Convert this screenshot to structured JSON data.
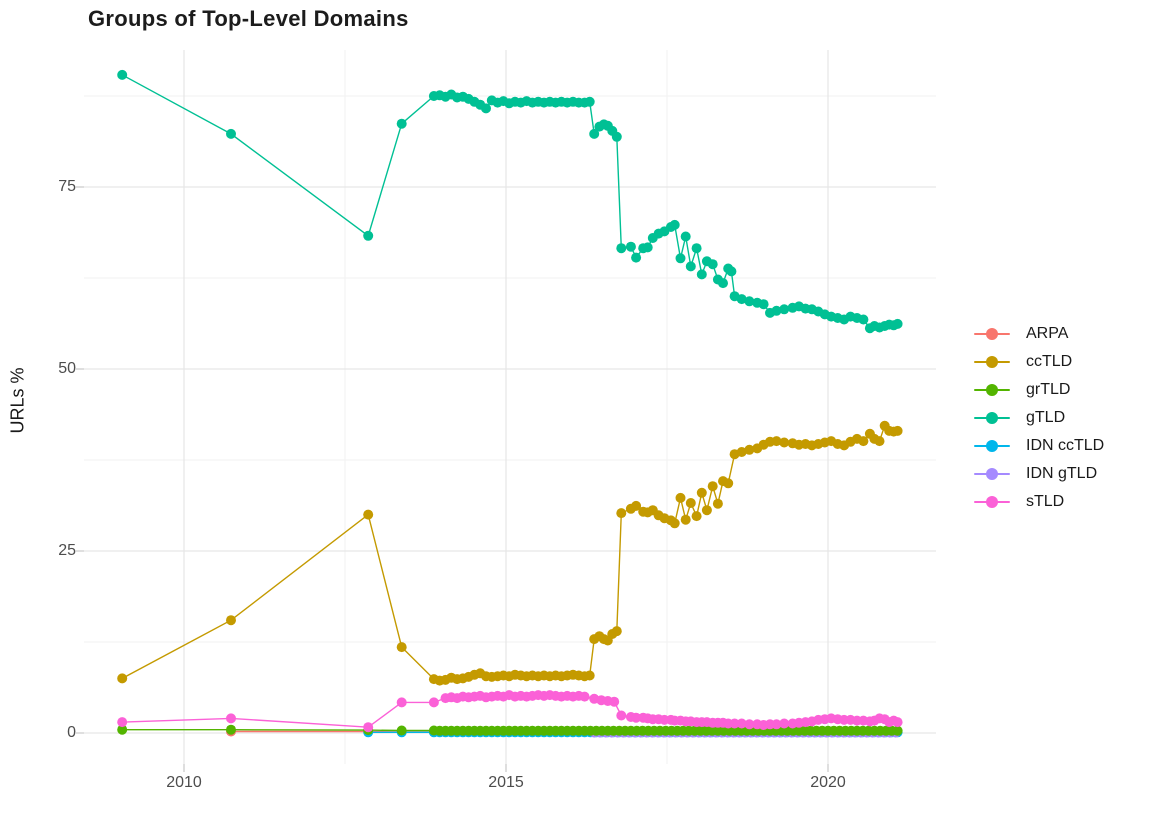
{
  "title": "Groups of Top-Level Domains",
  "y_axis_title": "URLs %",
  "legend": {
    "position": "right",
    "items": [
      {
        "label": "ARPA",
        "color": "#F8766D"
      },
      {
        "label": "ccTLD",
        "color": "#C49A00"
      },
      {
        "label": "grTLD",
        "color": "#53B400"
      },
      {
        "label": "gTLD",
        "color": "#00C094"
      },
      {
        "label": "IDN ccTLD",
        "color": "#00B6EB"
      },
      {
        "label": "IDN gTLD",
        "color": "#A58AFF"
      },
      {
        "label": "sTLD",
        "color": "#FB61D7"
      }
    ]
  },
  "chart_data": {
    "type": "line",
    "title": "Groups of Top-Level Domains",
    "xlabel": "",
    "ylabel": "URLs %",
    "xlim": [
      2008.45,
      2021.7
    ],
    "ylim": [
      -4.3,
      93.8
    ],
    "grid": "major+minor",
    "legend_position": "right",
    "x_axis": {
      "ticks": [
        {
          "label": "2010",
          "year": 2010
        },
        {
          "label": "2015",
          "year": 2015
        },
        {
          "label": "2020",
          "year": 2020
        }
      ],
      "minor": [
        2012.5,
        2017.5
      ]
    },
    "y_axis": {
      "ticks": [
        {
          "label": "0",
          "value": 0
        },
        {
          "label": "25",
          "value": 25
        },
        {
          "label": "50",
          "value": 50
        },
        {
          "label": "75",
          "value": 75
        }
      ],
      "minor": [
        12.5,
        37.5,
        62.5,
        87.5
      ]
    },
    "series": [
      {
        "name": "ARPA",
        "color": "#F8766D",
        "points": [
          [
            2010.73,
            0.2
          ],
          [
            2012.86,
            0.2
          ],
          [
            2013.38,
            0.15
          ],
          [
            2013.88,
            0.15
          ]
        ]
      },
      {
        "name": "IDN ccTLD",
        "color": "#00B6EB",
        "points": [
          [
            2012.86,
            0.1
          ],
          [
            2013.38,
            0.1
          ],
          [
            2013.88,
            0.1
          ]
        ],
        "flat_tail": {
          "from": 2013.97,
          "to": 2021.08,
          "step": 0.09,
          "value": 0.1
        }
      },
      {
        "name": "IDN gTLD",
        "color": "#A58AFF",
        "points": [],
        "flat_tail": {
          "from": 2016.37,
          "to": 2021.08,
          "step": 0.09,
          "value": 0.05
        }
      },
      {
        "name": "grTLD",
        "color": "#53B400",
        "points": [
          [
            2009.04,
            0.45
          ],
          [
            2010.73,
            0.45
          ],
          [
            2012.86,
            0.4
          ],
          [
            2013.38,
            0.35
          ],
          [
            2013.88,
            0.35
          ]
        ],
        "flat_tail": {
          "from": 2013.97,
          "to": 2021.08,
          "step": 0.09,
          "value": 0.3
        }
      },
      {
        "name": "sTLD",
        "color": "#FB61D7",
        "points": [
          [
            2009.04,
            1.5
          ],
          [
            2010.73,
            2.0
          ],
          [
            2012.86,
            0.8
          ],
          [
            2013.38,
            4.2
          ],
          [
            2013.88,
            4.2
          ],
          [
            2014.06,
            4.8
          ],
          [
            2014.15,
            4.9
          ],
          [
            2014.24,
            4.8
          ],
          [
            2014.33,
            5.0
          ],
          [
            2014.42,
            4.9
          ],
          [
            2014.51,
            5.0
          ],
          [
            2014.6,
            5.1
          ],
          [
            2014.69,
            4.9
          ],
          [
            2014.78,
            5.0
          ],
          [
            2014.87,
            5.1
          ],
          [
            2014.96,
            5.0
          ],
          [
            2015.05,
            5.2
          ],
          [
            2015.14,
            5.0
          ],
          [
            2015.23,
            5.1
          ],
          [
            2015.32,
            5.0
          ],
          [
            2015.41,
            5.1
          ],
          [
            2015.5,
            5.2
          ],
          [
            2015.59,
            5.1
          ],
          [
            2015.68,
            5.2
          ],
          [
            2015.77,
            5.1
          ],
          [
            2015.86,
            5.0
          ],
          [
            2015.95,
            5.1
          ],
          [
            2016.04,
            5.0
          ],
          [
            2016.13,
            5.1
          ],
          [
            2016.22,
            5.0
          ],
          [
            2016.37,
            4.7
          ],
          [
            2016.48,
            4.5
          ],
          [
            2016.58,
            4.4
          ],
          [
            2016.68,
            4.3
          ],
          [
            2016.79,
            2.4
          ],
          [
            2016.94,
            2.2
          ],
          [
            2017.02,
            2.1
          ],
          [
            2017.13,
            2.1
          ],
          [
            2017.2,
            2.0
          ],
          [
            2017.28,
            1.9
          ],
          [
            2017.37,
            1.9
          ],
          [
            2017.46,
            1.8
          ],
          [
            2017.56,
            1.8
          ],
          [
            2017.62,
            1.7
          ],
          [
            2017.71,
            1.7
          ],
          [
            2017.79,
            1.6
          ],
          [
            2017.87,
            1.6
          ],
          [
            2017.96,
            1.5
          ],
          [
            2018.04,
            1.5
          ],
          [
            2018.12,
            1.5
          ],
          [
            2018.21,
            1.4
          ],
          [
            2018.29,
            1.4
          ],
          [
            2018.37,
            1.4
          ],
          [
            2018.45,
            1.3
          ],
          [
            2018.55,
            1.3
          ],
          [
            2018.66,
            1.3
          ],
          [
            2018.78,
            1.2
          ],
          [
            2018.9,
            1.2
          ],
          [
            2019.0,
            1.1
          ],
          [
            2019.1,
            1.2
          ],
          [
            2019.2,
            1.2
          ],
          [
            2019.32,
            1.3
          ],
          [
            2019.45,
            1.3
          ],
          [
            2019.55,
            1.4
          ],
          [
            2019.65,
            1.5
          ],
          [
            2019.75,
            1.6
          ],
          [
            2019.85,
            1.8
          ],
          [
            2019.95,
            1.9
          ],
          [
            2020.05,
            2.0
          ],
          [
            2020.15,
            1.9
          ],
          [
            2020.25,
            1.8
          ],
          [
            2020.35,
            1.8
          ],
          [
            2020.45,
            1.7
          ],
          [
            2020.55,
            1.7
          ],
          [
            2020.65,
            1.6
          ],
          [
            2020.72,
            1.7
          ],
          [
            2020.8,
            2.0
          ],
          [
            2020.88,
            1.9
          ],
          [
            2020.95,
            1.5
          ],
          [
            2021.02,
            1.7
          ],
          [
            2021.08,
            1.5
          ]
        ]
      },
      {
        "name": "ccTLD",
        "color": "#C49A00",
        "points": [
          [
            2009.04,
            7.5
          ],
          [
            2010.73,
            15.5
          ],
          [
            2012.86,
            30.0
          ],
          [
            2013.38,
            11.8
          ],
          [
            2013.88,
            7.4
          ],
          [
            2013.97,
            7.2
          ],
          [
            2014.06,
            7.3
          ],
          [
            2014.15,
            7.6
          ],
          [
            2014.24,
            7.4
          ],
          [
            2014.33,
            7.5
          ],
          [
            2014.42,
            7.7
          ],
          [
            2014.51,
            8.0
          ],
          [
            2014.6,
            8.2
          ],
          [
            2014.69,
            7.8
          ],
          [
            2014.78,
            7.7
          ],
          [
            2014.87,
            7.8
          ],
          [
            2014.96,
            7.9
          ],
          [
            2015.05,
            7.8
          ],
          [
            2015.14,
            8.0
          ],
          [
            2015.23,
            7.9
          ],
          [
            2015.32,
            7.8
          ],
          [
            2015.41,
            7.9
          ],
          [
            2015.5,
            7.8
          ],
          [
            2015.59,
            7.9
          ],
          [
            2015.68,
            7.8
          ],
          [
            2015.77,
            7.9
          ],
          [
            2015.86,
            7.8
          ],
          [
            2015.95,
            7.9
          ],
          [
            2016.04,
            8.0
          ],
          [
            2016.13,
            7.9
          ],
          [
            2016.22,
            7.8
          ],
          [
            2016.3,
            7.9
          ],
          [
            2016.37,
            12.9
          ],
          [
            2016.45,
            13.3
          ],
          [
            2016.52,
            12.9
          ],
          [
            2016.58,
            12.7
          ],
          [
            2016.65,
            13.6
          ],
          [
            2016.72,
            14.0
          ],
          [
            2016.79,
            30.2
          ],
          [
            2016.94,
            30.8
          ],
          [
            2017.02,
            31.2
          ],
          [
            2017.13,
            30.4
          ],
          [
            2017.2,
            30.3
          ],
          [
            2017.28,
            30.6
          ],
          [
            2017.37,
            29.9
          ],
          [
            2017.46,
            29.5
          ],
          [
            2017.56,
            29.2
          ],
          [
            2017.62,
            28.8
          ],
          [
            2017.71,
            32.3
          ],
          [
            2017.79,
            29.3
          ],
          [
            2017.87,
            31.6
          ],
          [
            2017.96,
            29.8
          ],
          [
            2018.04,
            33.0
          ],
          [
            2018.12,
            30.6
          ],
          [
            2018.21,
            33.9
          ],
          [
            2018.29,
            31.5
          ],
          [
            2018.37,
            34.6
          ],
          [
            2018.45,
            34.3
          ],
          [
            2018.55,
            38.3
          ],
          [
            2018.66,
            38.6
          ],
          [
            2018.78,
            38.9
          ],
          [
            2018.9,
            39.1
          ],
          [
            2019.0,
            39.6
          ],
          [
            2019.1,
            40.0
          ],
          [
            2019.2,
            40.1
          ],
          [
            2019.32,
            39.9
          ],
          [
            2019.45,
            39.8
          ],
          [
            2019.55,
            39.6
          ],
          [
            2019.65,
            39.7
          ],
          [
            2019.75,
            39.5
          ],
          [
            2019.85,
            39.7
          ],
          [
            2019.95,
            39.9
          ],
          [
            2020.05,
            40.1
          ],
          [
            2020.15,
            39.7
          ],
          [
            2020.25,
            39.5
          ],
          [
            2020.35,
            40.0
          ],
          [
            2020.45,
            40.4
          ],
          [
            2020.55,
            40.1
          ],
          [
            2020.65,
            41.1
          ],
          [
            2020.72,
            40.4
          ],
          [
            2020.8,
            40.1
          ],
          [
            2020.88,
            42.2
          ],
          [
            2020.95,
            41.5
          ],
          [
            2021.02,
            41.4
          ],
          [
            2021.08,
            41.5
          ]
        ]
      },
      {
        "name": "gTLD",
        "color": "#00C094",
        "points": [
          [
            2009.04,
            90.4
          ],
          [
            2010.73,
            82.3
          ],
          [
            2012.86,
            68.3
          ],
          [
            2013.38,
            83.7
          ],
          [
            2013.88,
            87.5
          ],
          [
            2013.97,
            87.6
          ],
          [
            2014.06,
            87.4
          ],
          [
            2014.15,
            87.7
          ],
          [
            2014.24,
            87.3
          ],
          [
            2014.33,
            87.4
          ],
          [
            2014.42,
            87.1
          ],
          [
            2014.51,
            86.7
          ],
          [
            2014.6,
            86.3
          ],
          [
            2014.69,
            85.8
          ],
          [
            2014.78,
            86.9
          ],
          [
            2014.87,
            86.6
          ],
          [
            2014.96,
            86.8
          ],
          [
            2015.05,
            86.5
          ],
          [
            2015.14,
            86.7
          ],
          [
            2015.23,
            86.6
          ],
          [
            2015.32,
            86.8
          ],
          [
            2015.41,
            86.6
          ],
          [
            2015.5,
            86.7
          ],
          [
            2015.59,
            86.6
          ],
          [
            2015.68,
            86.7
          ],
          [
            2015.77,
            86.6
          ],
          [
            2015.86,
            86.7
          ],
          [
            2015.95,
            86.6
          ],
          [
            2016.04,
            86.7
          ],
          [
            2016.13,
            86.6
          ],
          [
            2016.22,
            86.6
          ],
          [
            2016.3,
            86.7
          ],
          [
            2016.37,
            82.3
          ],
          [
            2016.45,
            83.3
          ],
          [
            2016.52,
            83.6
          ],
          [
            2016.58,
            83.4
          ],
          [
            2016.65,
            82.7
          ],
          [
            2016.72,
            81.9
          ],
          [
            2016.79,
            66.6
          ],
          [
            2016.94,
            66.8
          ],
          [
            2017.02,
            65.3
          ],
          [
            2017.13,
            66.6
          ],
          [
            2017.2,
            66.7
          ],
          [
            2017.28,
            68.0
          ],
          [
            2017.37,
            68.6
          ],
          [
            2017.46,
            68.9
          ],
          [
            2017.56,
            69.5
          ],
          [
            2017.62,
            69.8
          ],
          [
            2017.71,
            65.2
          ],
          [
            2017.79,
            68.2
          ],
          [
            2017.87,
            64.1
          ],
          [
            2017.96,
            66.6
          ],
          [
            2018.04,
            63.0
          ],
          [
            2018.12,
            64.8
          ],
          [
            2018.21,
            64.4
          ],
          [
            2018.29,
            62.3
          ],
          [
            2018.37,
            61.8
          ],
          [
            2018.45,
            63.8
          ],
          [
            2018.5,
            63.4
          ],
          [
            2018.55,
            60.0
          ],
          [
            2018.66,
            59.6
          ],
          [
            2018.78,
            59.3
          ],
          [
            2018.9,
            59.1
          ],
          [
            2019.0,
            58.9
          ],
          [
            2019.1,
            57.7
          ],
          [
            2019.2,
            58.0
          ],
          [
            2019.32,
            58.2
          ],
          [
            2019.45,
            58.4
          ],
          [
            2019.55,
            58.6
          ],
          [
            2019.65,
            58.3
          ],
          [
            2019.75,
            58.2
          ],
          [
            2019.85,
            57.9
          ],
          [
            2019.95,
            57.5
          ],
          [
            2020.05,
            57.2
          ],
          [
            2020.15,
            57.0
          ],
          [
            2020.25,
            56.8
          ],
          [
            2020.35,
            57.2
          ],
          [
            2020.45,
            57.0
          ],
          [
            2020.55,
            56.8
          ],
          [
            2020.65,
            55.6
          ],
          [
            2020.72,
            55.9
          ],
          [
            2020.8,
            55.7
          ],
          [
            2020.88,
            55.9
          ],
          [
            2020.95,
            56.1
          ],
          [
            2021.02,
            56.0
          ],
          [
            2021.08,
            56.2
          ]
        ]
      }
    ]
  },
  "theme": {
    "background": "#ffffff",
    "grid_major_color": "#e6e6e6",
    "grid_minor_color": "#f1f1f1",
    "tick_color": "#c9c9c9",
    "axis_text_color": "#4d4d4d"
  }
}
